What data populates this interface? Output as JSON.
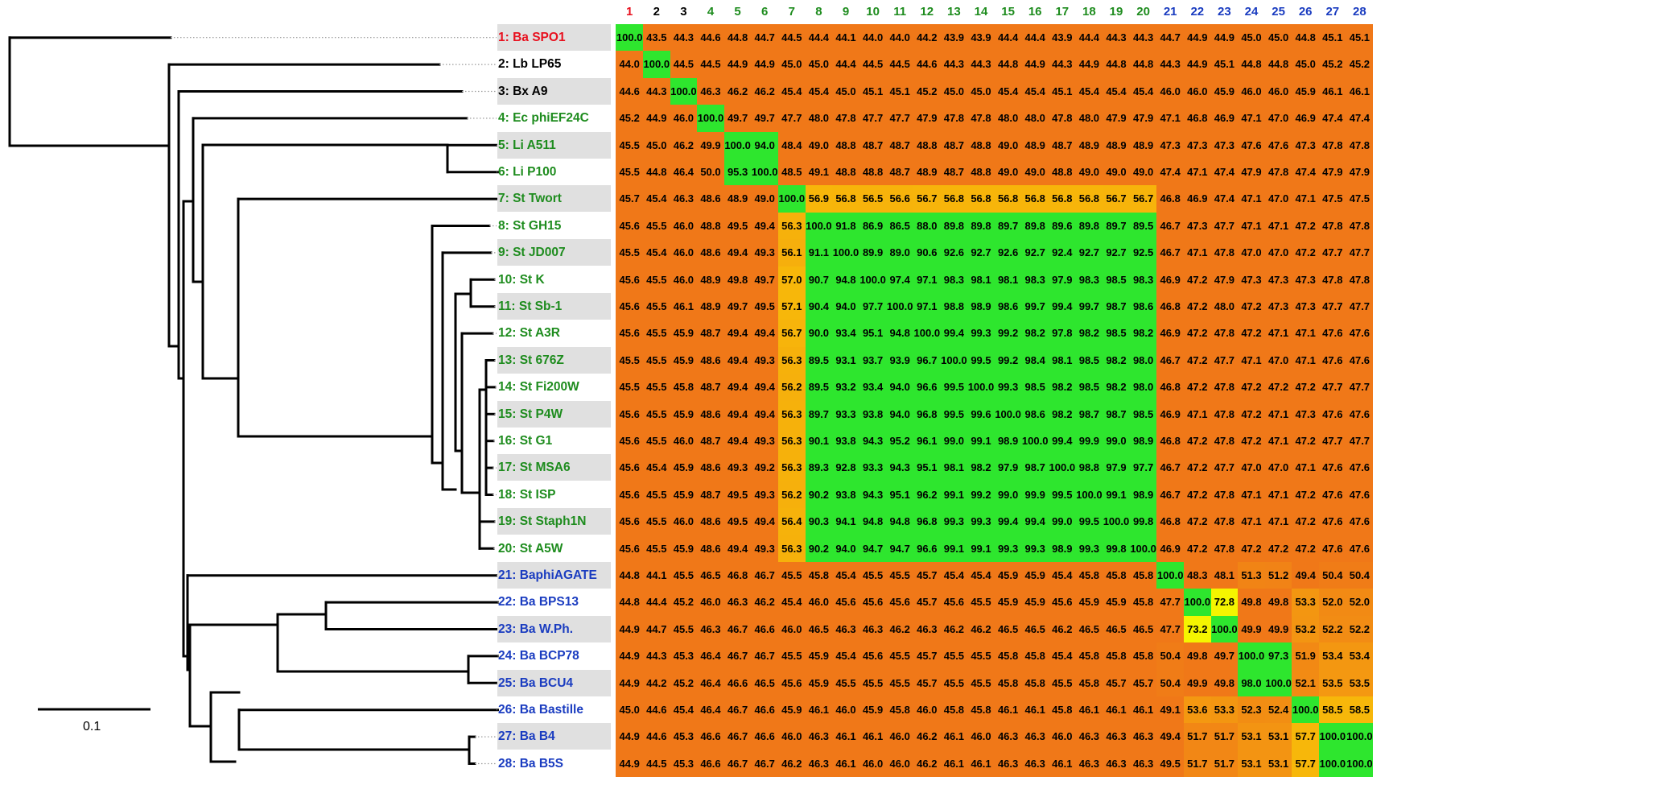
{
  "taxa": [
    {
      "label": "1: Ba SPO1",
      "color": "#e8101e"
    },
    {
      "label": "2: Lb LP65",
      "color": "#000000"
    },
    {
      "label": "3: Bx A9",
      "color": "#000000"
    },
    {
      "label": "4: Ec phiEF24C",
      "color": "#1e8c1e"
    },
    {
      "label": "5: Li A511",
      "color": "#1e8c1e"
    },
    {
      "label": "6: Li P100",
      "color": "#1e8c1e"
    },
    {
      "label": "7: St Twort",
      "color": "#1e8c1e"
    },
    {
      "label": "8: St GH15",
      "color": "#1e8c1e"
    },
    {
      "label": "9: St JD007",
      "color": "#1e8c1e"
    },
    {
      "label": "10: St K",
      "color": "#1e8c1e"
    },
    {
      "label": "11: St Sb-1",
      "color": "#1e8c1e"
    },
    {
      "label": "12: St A3R",
      "color": "#1e8c1e"
    },
    {
      "label": "13: St 676Z",
      "color": "#1e8c1e"
    },
    {
      "label": "14: St Fi200W",
      "color": "#1e8c1e"
    },
    {
      "label": "15: St P4W",
      "color": "#1e8c1e"
    },
    {
      "label": "16: St G1",
      "color": "#1e8c1e"
    },
    {
      "label": "17: St MSA6",
      "color": "#1e8c1e"
    },
    {
      "label": "18: St ISP",
      "color": "#1e8c1e"
    },
    {
      "label": "19: St Staph1N",
      "color": "#1e8c1e"
    },
    {
      "label": "20: St A5W",
      "color": "#1e8c1e"
    },
    {
      "label": "21: BaphiAGATE",
      "color": "#1a3cc0"
    },
    {
      "label": "22: Ba BPS13",
      "color": "#1a3cc0"
    },
    {
      "label": "23: Ba W.Ph.",
      "color": "#1a3cc0"
    },
    {
      "label": "24: Ba BCP78",
      "color": "#1a3cc0"
    },
    {
      "label": "25: Ba BCU4",
      "color": "#1a3cc0"
    },
    {
      "label": "26: Ba Bastille",
      "color": "#1a3cc0"
    },
    {
      "label": "27: Ba B4",
      "color": "#1a3cc0"
    },
    {
      "label": "28: Ba B5S",
      "color": "#1a3cc0"
    }
  ],
  "column_headers": [
    "1",
    "2",
    "3",
    "4",
    "5",
    "6",
    "7",
    "8",
    "9",
    "10",
    "11",
    "12",
    "13",
    "14",
    "15",
    "16",
    "17",
    "18",
    "19",
    "20",
    "21",
    "22",
    "23",
    "24",
    "25",
    "26",
    "27",
    "28"
  ],
  "scale_bar_label": "0.1",
  "matrix": [
    [
      100.0,
      43.5,
      44.3,
      44.6,
      44.8,
      44.7,
      44.5,
      44.4,
      44.1,
      44.0,
      44.0,
      44.2,
      43.9,
      43.9,
      44.4,
      44.4,
      43.9,
      44.4,
      44.3,
      44.3,
      44.7,
      44.9,
      44.9,
      45.0,
      45.0,
      44.8,
      45.1,
      45.1
    ],
    [
      44.0,
      100.0,
      44.5,
      44.5,
      44.9,
      44.9,
      45.0,
      45.0,
      44.4,
      44.5,
      44.5,
      44.6,
      44.3,
      44.3,
      44.8,
      44.9,
      44.3,
      44.9,
      44.8,
      44.8,
      44.3,
      44.9,
      45.1,
      44.8,
      44.8,
      45.0,
      45.2,
      45.2
    ],
    [
      44.6,
      44.3,
      100.0,
      46.3,
      46.2,
      46.2,
      45.4,
      45.4,
      45.0,
      45.1,
      45.1,
      45.2,
      45.0,
      45.0,
      45.4,
      45.4,
      45.1,
      45.4,
      45.4,
      45.4,
      46.0,
      46.0,
      45.9,
      46.0,
      46.0,
      45.9,
      46.1,
      46.1
    ],
    [
      45.2,
      44.9,
      46.0,
      100.0,
      49.7,
      49.7,
      47.7,
      48.0,
      47.8,
      47.7,
      47.7,
      47.9,
      47.8,
      47.8,
      48.0,
      48.0,
      47.8,
      48.0,
      47.9,
      47.9,
      47.1,
      46.8,
      46.9,
      47.1,
      47.0,
      46.9,
      47.4,
      47.4
    ],
    [
      45.5,
      45.0,
      46.2,
      49.9,
      100.0,
      94.0,
      48.4,
      49.0,
      48.8,
      48.7,
      48.7,
      48.8,
      48.7,
      48.8,
      49.0,
      48.9,
      48.7,
      48.9,
      48.9,
      48.9,
      47.3,
      47.3,
      47.3,
      47.6,
      47.6,
      47.3,
      47.8,
      47.8
    ],
    [
      45.5,
      44.8,
      46.4,
      50.0,
      95.3,
      100.0,
      48.5,
      49.1,
      48.8,
      48.8,
      48.7,
      48.9,
      48.7,
      48.8,
      49.0,
      49.0,
      48.8,
      49.0,
      49.0,
      49.0,
      47.4,
      47.1,
      47.4,
      47.9,
      47.8,
      47.4,
      47.9,
      47.9
    ],
    [
      45.7,
      45.4,
      46.3,
      48.6,
      48.9,
      49.0,
      100.0,
      56.9,
      56.8,
      56.5,
      56.6,
      56.7,
      56.8,
      56.8,
      56.8,
      56.8,
      56.8,
      56.8,
      56.7,
      56.7,
      46.8,
      46.9,
      47.4,
      47.1,
      47.0,
      47.1,
      47.5,
      47.5
    ],
    [
      45.6,
      45.5,
      46.0,
      48.8,
      49.5,
      49.4,
      56.3,
      100.0,
      91.8,
      86.9,
      86.5,
      88.0,
      89.8,
      89.8,
      89.7,
      89.8,
      89.6,
      89.8,
      89.7,
      89.5,
      46.7,
      47.3,
      47.7,
      47.1,
      47.1,
      47.2,
      47.8,
      47.8
    ],
    [
      45.5,
      45.4,
      46.0,
      48.6,
      49.4,
      49.3,
      56.1,
      91.1,
      100.0,
      89.9,
      89.0,
      90.6,
      92.6,
      92.7,
      92.6,
      92.7,
      92.4,
      92.7,
      92.7,
      92.5,
      46.7,
      47.1,
      47.8,
      47.0,
      47.0,
      47.2,
      47.7,
      47.7
    ],
    [
      45.6,
      45.5,
      46.0,
      48.9,
      49.8,
      49.7,
      57.0,
      90.7,
      94.8,
      100.0,
      97.4,
      97.1,
      98.3,
      98.1,
      98.1,
      98.3,
      97.9,
      98.3,
      98.5,
      98.3,
      46.9,
      47.2,
      47.9,
      47.3,
      47.3,
      47.3,
      47.8,
      47.8
    ],
    [
      45.6,
      45.5,
      46.1,
      48.9,
      49.7,
      49.5,
      57.1,
      90.4,
      94.0,
      97.7,
      100.0,
      97.1,
      98.8,
      98.9,
      98.6,
      99.7,
      99.4,
      99.7,
      98.7,
      98.6,
      46.8,
      47.2,
      48.0,
      47.2,
      47.3,
      47.3,
      47.7,
      47.7
    ],
    [
      45.6,
      45.5,
      45.9,
      48.7,
      49.4,
      49.4,
      56.7,
      90.0,
      93.4,
      95.1,
      94.8,
      100.0,
      99.4,
      99.3,
      99.2,
      98.2,
      97.8,
      98.2,
      98.5,
      98.2,
      46.9,
      47.2,
      47.8,
      47.2,
      47.1,
      47.1,
      47.6,
      47.6
    ],
    [
      45.5,
      45.5,
      45.9,
      48.6,
      49.4,
      49.3,
      56.3,
      89.5,
      93.1,
      93.7,
      93.9,
      96.7,
      100.0,
      99.5,
      99.2,
      98.4,
      98.1,
      98.5,
      98.2,
      98.0,
      46.7,
      47.2,
      47.7,
      47.1,
      47.0,
      47.1,
      47.6,
      47.6
    ],
    [
      45.5,
      45.5,
      45.8,
      48.7,
      49.4,
      49.4,
      56.2,
      89.5,
      93.2,
      93.4,
      94.0,
      96.6,
      99.5,
      100.0,
      99.3,
      98.5,
      98.2,
      98.5,
      98.2,
      98.0,
      46.8,
      47.2,
      47.8,
      47.2,
      47.2,
      47.2,
      47.7,
      47.7
    ],
    [
      45.6,
      45.5,
      45.9,
      48.6,
      49.4,
      49.4,
      56.3,
      89.7,
      93.3,
      93.8,
      94.0,
      96.8,
      99.5,
      99.6,
      100.0,
      98.6,
      98.2,
      98.7,
      98.7,
      98.5,
      46.9,
      47.1,
      47.8,
      47.2,
      47.1,
      47.3,
      47.6,
      47.6
    ],
    [
      45.6,
      45.5,
      46.0,
      48.7,
      49.4,
      49.3,
      56.3,
      90.1,
      93.8,
      94.3,
      95.2,
      96.1,
      99.0,
      99.1,
      98.9,
      100.0,
      99.4,
      99.9,
      99.0,
      98.9,
      46.8,
      47.2,
      47.8,
      47.2,
      47.1,
      47.2,
      47.7,
      47.7
    ],
    [
      45.6,
      45.4,
      45.9,
      48.6,
      49.3,
      49.2,
      56.3,
      89.3,
      92.8,
      93.3,
      94.3,
      95.1,
      98.1,
      98.2,
      97.9,
      98.7,
      100.0,
      98.8,
      97.9,
      97.7,
      46.7,
      47.2,
      47.7,
      47.0,
      47.0,
      47.1,
      47.6,
      47.6
    ],
    [
      45.6,
      45.5,
      45.9,
      48.7,
      49.5,
      49.3,
      56.2,
      90.2,
      93.8,
      94.3,
      95.1,
      96.2,
      99.1,
      99.2,
      99.0,
      99.9,
      99.5,
      100.0,
      99.1,
      98.9,
      46.7,
      47.2,
      47.8,
      47.1,
      47.1,
      47.2,
      47.6,
      47.6
    ],
    [
      45.6,
      45.5,
      46.0,
      48.6,
      49.5,
      49.4,
      56.4,
      90.3,
      94.1,
      94.8,
      94.8,
      96.8,
      99.3,
      99.3,
      99.4,
      99.4,
      99.0,
      99.5,
      100.0,
      99.8,
      46.8,
      47.2,
      47.8,
      47.1,
      47.1,
      47.2,
      47.6,
      47.6
    ],
    [
      45.6,
      45.5,
      45.9,
      48.6,
      49.4,
      49.3,
      56.3,
      90.2,
      94.0,
      94.7,
      94.7,
      96.6,
      99.1,
      99.1,
      99.3,
      99.3,
      98.9,
      99.3,
      99.8,
      100.0,
      46.9,
      47.2,
      47.8,
      47.2,
      47.2,
      47.2,
      47.6,
      47.6
    ],
    [
      44.8,
      44.1,
      45.5,
      46.5,
      46.8,
      46.7,
      45.5,
      45.8,
      45.4,
      45.5,
      45.5,
      45.7,
      45.4,
      45.4,
      45.9,
      45.9,
      45.4,
      45.8,
      45.8,
      45.8,
      100.0,
      48.3,
      48.1,
      51.3,
      51.2,
      49.4,
      50.4,
      50.4
    ],
    [
      44.8,
      44.4,
      45.2,
      46.0,
      46.3,
      46.2,
      45.4,
      46.0,
      45.6,
      45.6,
      45.6,
      45.7,
      45.6,
      45.5,
      45.9,
      45.9,
      45.6,
      45.9,
      45.9,
      45.8,
      47.7,
      100.0,
      72.8,
      49.8,
      49.8,
      53.3,
      52.0,
      52.0
    ],
    [
      44.9,
      44.7,
      45.5,
      46.3,
      46.7,
      46.6,
      46.0,
      46.5,
      46.3,
      46.3,
      46.2,
      46.3,
      46.2,
      46.2,
      46.5,
      46.5,
      46.2,
      46.5,
      46.5,
      46.5,
      47.7,
      73.2,
      100.0,
      49.9,
      49.9,
      53.2,
      52.2,
      52.2
    ],
    [
      44.9,
      44.3,
      45.3,
      46.4,
      46.7,
      46.7,
      45.5,
      45.9,
      45.4,
      45.6,
      45.5,
      45.7,
      45.5,
      45.5,
      45.8,
      45.8,
      45.4,
      45.8,
      45.8,
      45.8,
      50.4,
      49.8,
      49.7,
      100.0,
      97.3,
      51.9,
      53.4,
      53.4
    ],
    [
      44.9,
      44.2,
      45.2,
      46.4,
      46.6,
      46.5,
      45.6,
      45.9,
      45.5,
      45.5,
      45.5,
      45.7,
      45.5,
      45.5,
      45.8,
      45.8,
      45.5,
      45.8,
      45.7,
      45.7,
      50.4,
      49.9,
      49.8,
      98.0,
      100.0,
      52.1,
      53.5,
      53.5
    ],
    [
      45.0,
      44.6,
      45.4,
      46.4,
      46.7,
      46.6,
      45.9,
      46.1,
      46.0,
      45.9,
      45.8,
      46.0,
      45.8,
      45.8,
      46.1,
      46.1,
      45.8,
      46.1,
      46.1,
      46.1,
      49.1,
      53.6,
      53.3,
      52.3,
      52.4,
      100.0,
      58.5,
      58.5
    ],
    [
      44.9,
      44.6,
      45.3,
      46.6,
      46.7,
      46.6,
      46.0,
      46.3,
      46.1,
      46.1,
      46.0,
      46.2,
      46.1,
      46.0,
      46.3,
      46.3,
      46.0,
      46.3,
      46.3,
      46.3,
      49.4,
      51.7,
      51.7,
      53.1,
      53.1,
      57.7,
      100.0,
      100.0
    ],
    [
      44.9,
      44.5,
      45.3,
      46.6,
      46.7,
      46.7,
      46.2,
      46.3,
      46.1,
      46.0,
      46.0,
      46.2,
      46.1,
      46.1,
      46.3,
      46.3,
      46.1,
      46.3,
      46.3,
      46.3,
      49.5,
      51.7,
      51.7,
      53.1,
      53.1,
      57.7,
      100.0,
      100.0
    ]
  ],
  "colors": {
    "red": "#e8101e",
    "green": "#1e8c1e",
    "blue": "#1a3cc0",
    "heat_low": "#f07818",
    "heat_mid": "#f7b70a",
    "heat_yellow": "#f5f500",
    "heat_high": "#2ee62e",
    "label_shade": "#e0e0e0"
  }
}
